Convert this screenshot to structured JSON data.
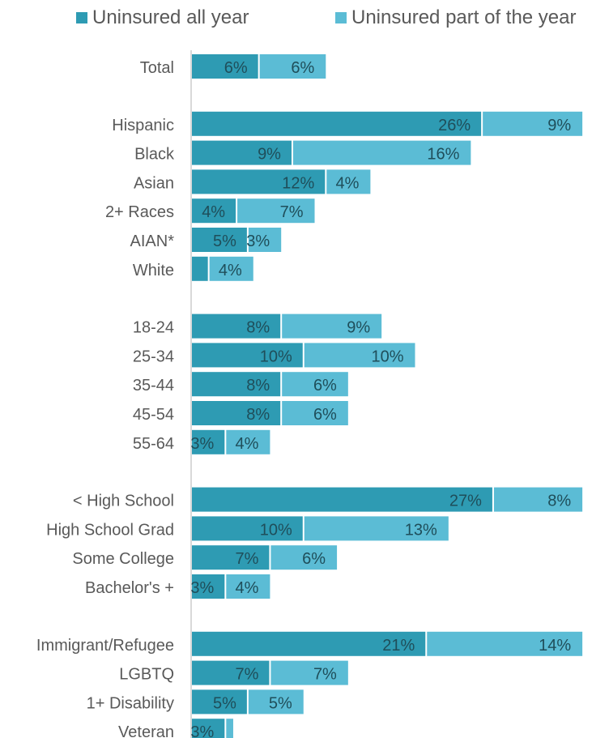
{
  "chart_data": {
    "type": "bar",
    "orientation": "horizontal",
    "stacked": true,
    "legend_position": "top",
    "colors": {
      "uninsured_all_year": "#2e9bb3",
      "uninsured_part_year": "#5bbcd5",
      "label_text": "#1f4e5a",
      "axis_line": "#d9d9d9"
    },
    "series": [
      {
        "name": "Uninsured all year",
        "color": "#2e9bb3",
        "values": [
          6,
          26,
          9,
          12,
          4,
          5,
          null,
          8,
          10,
          8,
          8,
          3,
          27,
          10,
          7,
          3,
          21,
          7,
          5,
          3
        ],
        "labels": [
          "6%",
          "26%",
          "9%",
          "12%",
          "4%",
          "5%",
          "",
          "8%",
          "10%",
          "8%",
          "8%",
          "3%",
          "27%",
          "10%",
          "7%",
          "3%",
          "21%",
          "7%",
          "5%",
          "3%"
        ]
      },
      {
        "name": "Uninsured part of the year",
        "color": "#5bbcd5",
        "values": [
          6,
          9,
          16,
          4,
          7,
          3,
          4,
          9,
          10,
          6,
          6,
          4,
          8,
          13,
          6,
          4,
          14,
          7,
          5,
          null
        ],
        "labels": [
          "6%",
          "9%",
          "16%",
          "4%",
          "7%",
          "3%",
          "4%",
          "9%",
          "10%",
          "6%",
          "6%",
          "4%",
          "8%",
          "13%",
          "6%",
          "4%",
          "14%",
          "7%",
          "5%",
          ""
        ]
      }
    ],
    "categories": [
      "Total",
      "Hispanic",
      "Black",
      "Asian",
      "2+ Races",
      "AIAN*",
      "White",
      "18-24",
      "25-34",
      "35-44",
      "45-54",
      "55-64",
      "< High School",
      "High School Grad",
      "Some College",
      "Bachelor's +",
      "Immigrant/Refugee",
      "LGBTQ",
      "1+ Disability",
      "Veteran"
    ],
    "groups": [
      [
        0
      ],
      [
        1,
        2,
        3,
        4,
        5,
        6
      ],
      [
        7,
        8,
        9,
        10,
        11
      ],
      [
        12,
        13,
        14,
        15
      ],
      [
        16,
        17,
        18,
        19
      ]
    ],
    "estimated_unlabeled_values": {
      "White_all_year": 1.5,
      "Veteran_part_year": 0.7
    },
    "xlim": [
      0,
      35.5
    ],
    "grid": false
  }
}
